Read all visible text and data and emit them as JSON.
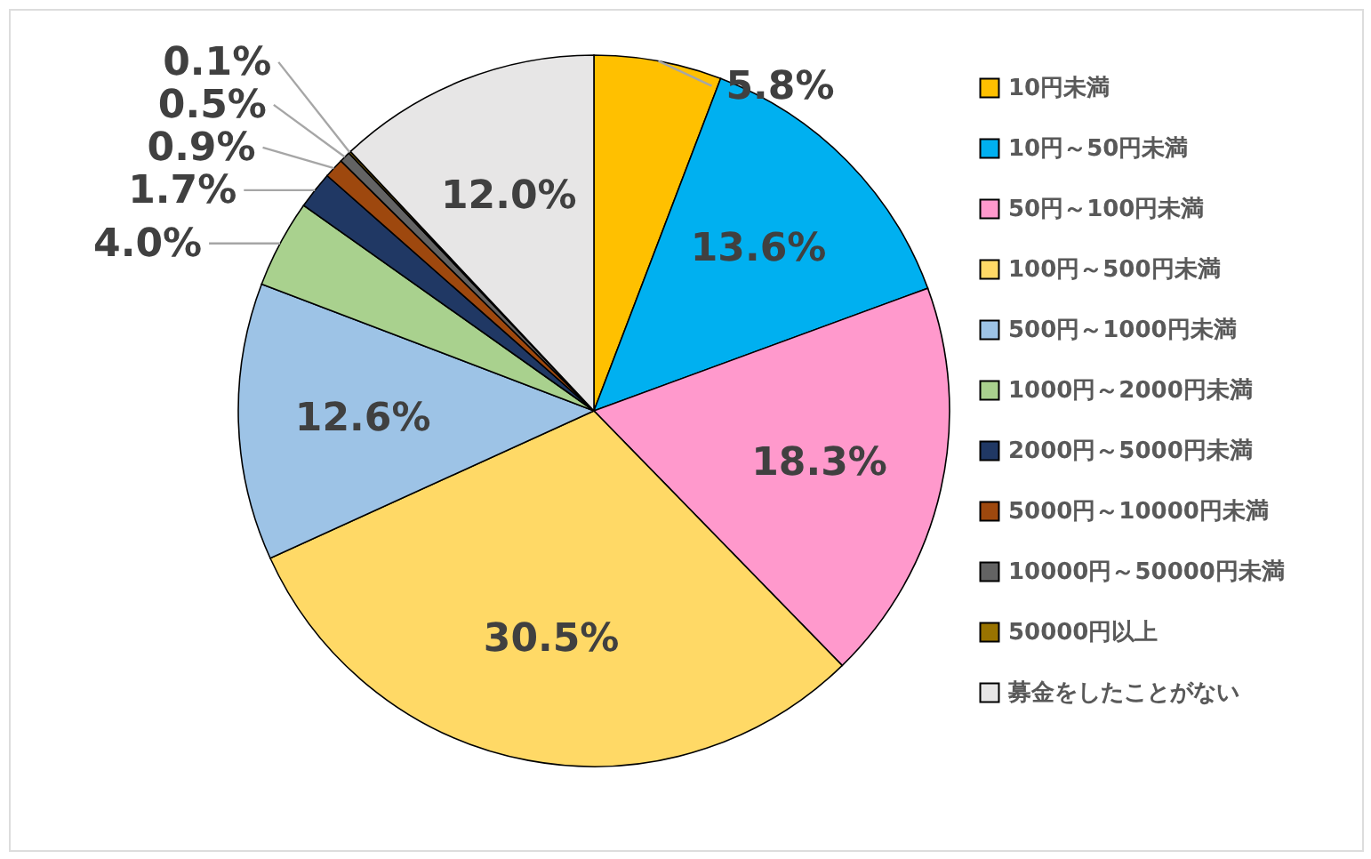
{
  "chart_data": {
    "type": "pie",
    "categories": [
      "10円未満",
      "10円～50円未満",
      "50円～100円未満",
      "100円～500円未満",
      "500円～1000円未満",
      "1000円～2000円未満",
      "2000円～5000円未満",
      "5000円～10000円未満",
      "10000円～50000円未満",
      "50000円以上",
      "募金をしたことがない"
    ],
    "values": [
      5.8,
      13.6,
      18.3,
      30.5,
      12.6,
      4.0,
      1.7,
      0.9,
      0.5,
      0.1,
      12.0
    ],
    "colors": [
      "#ffc000",
      "#00b0f0",
      "#ff99cc",
      "#ffd966",
      "#9dc3e6",
      "#a9d18e",
      "#203864",
      "#9e480e",
      "#636363",
      "#997300",
      "#e7e6e6"
    ],
    "value_labels": [
      "5.8%",
      "13.6%",
      "18.3%",
      "30.5%",
      "12.6%",
      "4.0%",
      "1.7%",
      "0.9%",
      "0.5%",
      "0.1%",
      "12.0%"
    ],
    "legend": "right"
  }
}
